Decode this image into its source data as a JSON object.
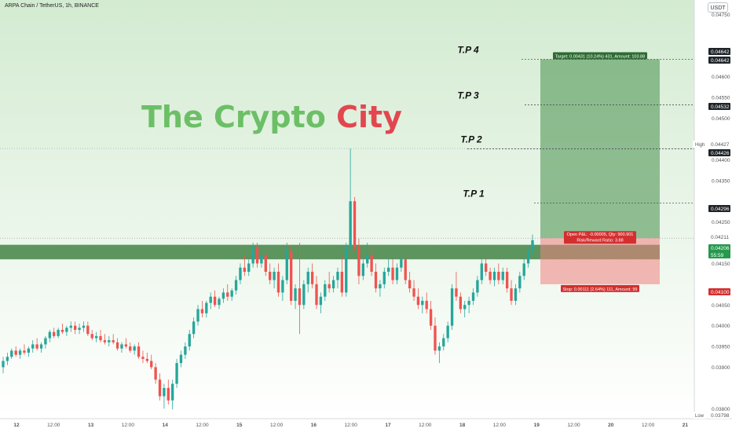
{
  "header": {
    "symbol_title": "ARPA Chain / TetherUS, 1h, BINANCE"
  },
  "currency_button": "USDT",
  "watermark": "The Crypto City",
  "colors": {
    "up": "#26a69a",
    "down": "#ef5350",
    "zone": "#4b8a4e",
    "target": "#5e9e62",
    "stop": "#f08080",
    "watermark_green": "#6dbf67",
    "watermark_red": "#e2474f",
    "last_price": "#26994d",
    "stop_label": "#d32f2f"
  },
  "chart_data": {
    "type": "candlestick",
    "price_axis": {
      "ticks": [
        "0.04750",
        "0.04600",
        "0.04550",
        "0.04500",
        "0.04400",
        "0.04350",
        "0.04250",
        "0.04150",
        "0.04050",
        "0.04000",
        "0.03950",
        "0.03900",
        "0.03800"
      ],
      "range": [
        0.03776,
        0.04785
      ],
      "labels": [
        {
          "text": "0.04642",
          "style": "dark"
        },
        {
          "text": "0.04642",
          "style": "dark"
        },
        {
          "text": "0.04532",
          "style": "dark"
        },
        {
          "text": "0.04427",
          "style": "light",
          "prefix": "High"
        },
        {
          "text": "0.04426",
          "style": "dark"
        },
        {
          "text": "0.04296",
          "style": "dark"
        },
        {
          "text": "0.04211",
          "style": "light"
        },
        {
          "text": "0.04206",
          "style": "green",
          "sub": "55:59"
        },
        {
          "text": "0.04100",
          "style": "red"
        },
        {
          "text": "0.03798",
          "style": "light",
          "prefix": "Low"
        }
      ]
    },
    "time_axis": [
      "12",
      "12:00",
      "13",
      "12:00",
      "14",
      "12:00",
      "15",
      "12:00",
      "16",
      "12:00",
      "17",
      "12:00",
      "18",
      "12:00",
      "19",
      "12:00",
      "20",
      "12:00",
      "21"
    ],
    "take_profit_lines": [
      {
        "label": "T.P 4",
        "price": 0.04642
      },
      {
        "label": "T.P 3",
        "price": 0.04532
      },
      {
        "label": "T.P 2",
        "price": 0.04426
      },
      {
        "label": "T.P 1",
        "price": 0.04296
      }
    ],
    "horizontal_zone": [
      0.0416,
      0.04195
    ],
    "position": {
      "type": "long",
      "entry": 0.04211,
      "target": 0.04642,
      "stop": 0.041,
      "target_label": "Target: 0.00431 (10.24%) 431, Amount: 103.88",
      "stop_label": "Stop: 0.00111 (2.64%) 111, Amount: 99",
      "pnl_label": "Open P&L: -0.00005, Qty: 900.901",
      "rr_label": "Risk/Reward Ratio: 3.88"
    },
    "high": 0.04427,
    "low": 0.03798,
    "last_price": 0.04206,
    "candles": [
      [
        0.039,
        0.03925,
        0.03885,
        0.03915
      ],
      [
        0.03915,
        0.03935,
        0.03905,
        0.03925
      ],
      [
        0.03925,
        0.03945,
        0.0392,
        0.0394
      ],
      [
        0.0394,
        0.0395,
        0.03925,
        0.0393
      ],
      [
        0.0393,
        0.03945,
        0.0392,
        0.0394
      ],
      [
        0.0394,
        0.03955,
        0.0393,
        0.03935
      ],
      [
        0.03935,
        0.0395,
        0.03925,
        0.03945
      ],
      [
        0.03945,
        0.03965,
        0.03935,
        0.03955
      ],
      [
        0.03955,
        0.0397,
        0.0394,
        0.03945
      ],
      [
        0.03945,
        0.0396,
        0.03935,
        0.03955
      ],
      [
        0.03955,
        0.03975,
        0.03945,
        0.0397
      ],
      [
        0.0397,
        0.0399,
        0.0396,
        0.03985
      ],
      [
        0.03985,
        0.03995,
        0.0397,
        0.03975
      ],
      [
        0.03975,
        0.03995,
        0.0397,
        0.0399
      ],
      [
        0.0399,
        0.04005,
        0.0398,
        0.03985
      ],
      [
        0.03985,
        0.04,
        0.03975,
        0.03995
      ],
      [
        0.03995,
        0.0401,
        0.03985,
        0.04
      ],
      [
        0.04,
        0.0401,
        0.0398,
        0.0399
      ],
      [
        0.0399,
        0.04005,
        0.0398,
        0.03995
      ],
      [
        0.03995,
        0.0401,
        0.03985,
        0.04
      ],
      [
        0.04,
        0.0401,
        0.03975,
        0.0398
      ],
      [
        0.0398,
        0.0399,
        0.03965,
        0.0397
      ],
      [
        0.0397,
        0.03985,
        0.0396,
        0.03975
      ],
      [
        0.03975,
        0.0399,
        0.0396,
        0.03965
      ],
      [
        0.03965,
        0.0398,
        0.03955,
        0.0396
      ],
      [
        0.0396,
        0.03975,
        0.0395,
        0.03965
      ],
      [
        0.03965,
        0.0398,
        0.03955,
        0.0396
      ],
      [
        0.0396,
        0.0397,
        0.0394,
        0.03945
      ],
      [
        0.03945,
        0.0396,
        0.03935,
        0.03955
      ],
      [
        0.03955,
        0.0397,
        0.03945,
        0.0395
      ],
      [
        0.0395,
        0.0396,
        0.03935,
        0.0394
      ],
      [
        0.0394,
        0.03955,
        0.0393,
        0.0395
      ],
      [
        0.0395,
        0.0396,
        0.0392,
        0.03925
      ],
      [
        0.03925,
        0.0394,
        0.0391,
        0.0392
      ],
      [
        0.0392,
        0.03935,
        0.0391,
        0.03915
      ],
      [
        0.03915,
        0.0393,
        0.03895,
        0.039
      ],
      [
        0.039,
        0.0391,
        0.0386,
        0.0387
      ],
      [
        0.0387,
        0.03885,
        0.0382,
        0.0383
      ],
      [
        0.0383,
        0.0386,
        0.038,
        0.0385
      ],
      [
        0.0385,
        0.0387,
        0.0381,
        0.0382
      ],
      [
        0.0382,
        0.0387,
        0.03798,
        0.0386
      ],
      [
        0.0386,
        0.0392,
        0.0385,
        0.0391
      ],
      [
        0.0391,
        0.0394,
        0.039,
        0.0393
      ],
      [
        0.0393,
        0.0396,
        0.0392,
        0.0395
      ],
      [
        0.0395,
        0.0399,
        0.0394,
        0.0398
      ],
      [
        0.0398,
        0.0402,
        0.0397,
        0.0401
      ],
      [
        0.0401,
        0.0405,
        0.04,
        0.0404
      ],
      [
        0.0404,
        0.0406,
        0.0402,
        0.0403
      ],
      [
        0.0403,
        0.0406,
        0.0402,
        0.04055
      ],
      [
        0.04055,
        0.0408,
        0.0404,
        0.0407
      ],
      [
        0.0407,
        0.04085,
        0.04045,
        0.0405
      ],
      [
        0.0405,
        0.0407,
        0.0404,
        0.04065
      ],
      [
        0.04065,
        0.0409,
        0.04055,
        0.0408
      ],
      [
        0.0408,
        0.041,
        0.0406,
        0.0407
      ],
      [
        0.0407,
        0.0409,
        0.0406,
        0.04085
      ],
      [
        0.04085,
        0.0412,
        0.04075,
        0.0411
      ],
      [
        0.0411,
        0.0415,
        0.041,
        0.0414
      ],
      [
        0.0414,
        0.0417,
        0.0412,
        0.0413
      ],
      [
        0.0413,
        0.0416,
        0.0412,
        0.0415
      ],
      [
        0.0415,
        0.042,
        0.0414,
        0.0419
      ],
      [
        0.0419,
        0.042,
        0.0414,
        0.0415
      ],
      [
        0.0415,
        0.0418,
        0.0414,
        0.0417
      ],
      [
        0.0417,
        0.0418,
        0.0412,
        0.0413
      ],
      [
        0.0413,
        0.0415,
        0.041,
        0.0411
      ],
      [
        0.0411,
        0.0414,
        0.0409,
        0.0413
      ],
      [
        0.0413,
        0.0415,
        0.0407,
        0.0408
      ],
      [
        0.0408,
        0.0412,
        0.0406,
        0.0411
      ],
      [
        0.0411,
        0.042,
        0.041,
        0.0418
      ],
      [
        0.0418,
        0.04195,
        0.0405,
        0.0406
      ],
      [
        0.0406,
        0.041,
        0.0404,
        0.0409
      ],
      [
        0.0409,
        0.042,
        0.0398,
        0.0405
      ],
      [
        0.0405,
        0.0411,
        0.0404,
        0.041
      ],
      [
        0.041,
        0.0414,
        0.0408,
        0.0413
      ],
      [
        0.0413,
        0.0415,
        0.0409,
        0.041
      ],
      [
        0.041,
        0.0412,
        0.0404,
        0.0405
      ],
      [
        0.0405,
        0.0408,
        0.0403,
        0.0407
      ],
      [
        0.0407,
        0.0411,
        0.0406,
        0.041
      ],
      [
        0.041,
        0.0413,
        0.0408,
        0.0409
      ],
      [
        0.0409,
        0.0412,
        0.0408,
        0.0411
      ],
      [
        0.0411,
        0.0414,
        0.0409,
        0.0413
      ],
      [
        0.0413,
        0.0417,
        0.0407,
        0.0408
      ],
      [
        0.0408,
        0.042,
        0.0407,
        0.0419
      ],
      [
        0.0419,
        0.04427,
        0.0418,
        0.043
      ],
      [
        0.043,
        0.0431,
        0.0418,
        0.0419
      ],
      [
        0.0419,
        0.0421,
        0.041,
        0.0412
      ],
      [
        0.0412,
        0.0416,
        0.0411,
        0.0415
      ],
      [
        0.0415,
        0.042,
        0.0414,
        0.0417
      ],
      [
        0.0417,
        0.0419,
        0.0412,
        0.0413
      ],
      [
        0.0413,
        0.0415,
        0.0408,
        0.0409
      ],
      [
        0.0409,
        0.0411,
        0.0407,
        0.041
      ],
      [
        0.041,
        0.0414,
        0.0409,
        0.0413
      ],
      [
        0.0413,
        0.0416,
        0.0412,
        0.0414
      ],
      [
        0.0414,
        0.0416,
        0.041,
        0.0411
      ],
      [
        0.0411,
        0.0415,
        0.041,
        0.0414
      ],
      [
        0.0414,
        0.0417,
        0.0413,
        0.0416
      ],
      [
        0.0416,
        0.0417,
        0.041,
        0.0411
      ],
      [
        0.0411,
        0.0413,
        0.0408,
        0.0409
      ],
      [
        0.0409,
        0.0411,
        0.0406,
        0.0407
      ],
      [
        0.0407,
        0.0409,
        0.0404,
        0.0405
      ],
      [
        0.0405,
        0.0407,
        0.0403,
        0.0406
      ],
      [
        0.0406,
        0.0408,
        0.0403,
        0.0404
      ],
      [
        0.0404,
        0.0406,
        0.0399,
        0.04
      ],
      [
        0.04,
        0.0402,
        0.0393,
        0.0394
      ],
      [
        0.0394,
        0.0396,
        0.0391,
        0.0395
      ],
      [
        0.0395,
        0.0398,
        0.0394,
        0.0397
      ],
      [
        0.0397,
        0.0401,
        0.0396,
        0.04
      ],
      [
        0.04,
        0.041,
        0.0399,
        0.0409
      ],
      [
        0.0409,
        0.0413,
        0.0406,
        0.0407
      ],
      [
        0.0407,
        0.0408,
        0.0403,
        0.0404
      ],
      [
        0.0404,
        0.0406,
        0.0402,
        0.0405
      ],
      [
        0.0405,
        0.0407,
        0.0403,
        0.0406
      ],
      [
        0.0406,
        0.0409,
        0.0405,
        0.0408
      ],
      [
        0.0408,
        0.0412,
        0.0407,
        0.0411
      ],
      [
        0.0411,
        0.0416,
        0.041,
        0.0415
      ],
      [
        0.0415,
        0.04165,
        0.0412,
        0.0413
      ],
      [
        0.0413,
        0.0414,
        0.041,
        0.0411
      ],
      [
        0.0411,
        0.0414,
        0.04095,
        0.0413
      ],
      [
        0.0413,
        0.0415,
        0.041,
        0.0411
      ],
      [
        0.0411,
        0.0414,
        0.041,
        0.0413
      ],
      [
        0.0413,
        0.0414,
        0.0408,
        0.0409
      ],
      [
        0.0409,
        0.0411,
        0.0405,
        0.0406
      ],
      [
        0.0406,
        0.041,
        0.0405,
        0.0409
      ],
      [
        0.0409,
        0.0413,
        0.0408,
        0.0412
      ],
      [
        0.0412,
        0.0416,
        0.0411,
        0.0415
      ],
      [
        0.0415,
        0.0419,
        0.0414,
        0.0418
      ],
      [
        0.0418,
        0.0422,
        0.0417,
        0.04206
      ]
    ]
  }
}
